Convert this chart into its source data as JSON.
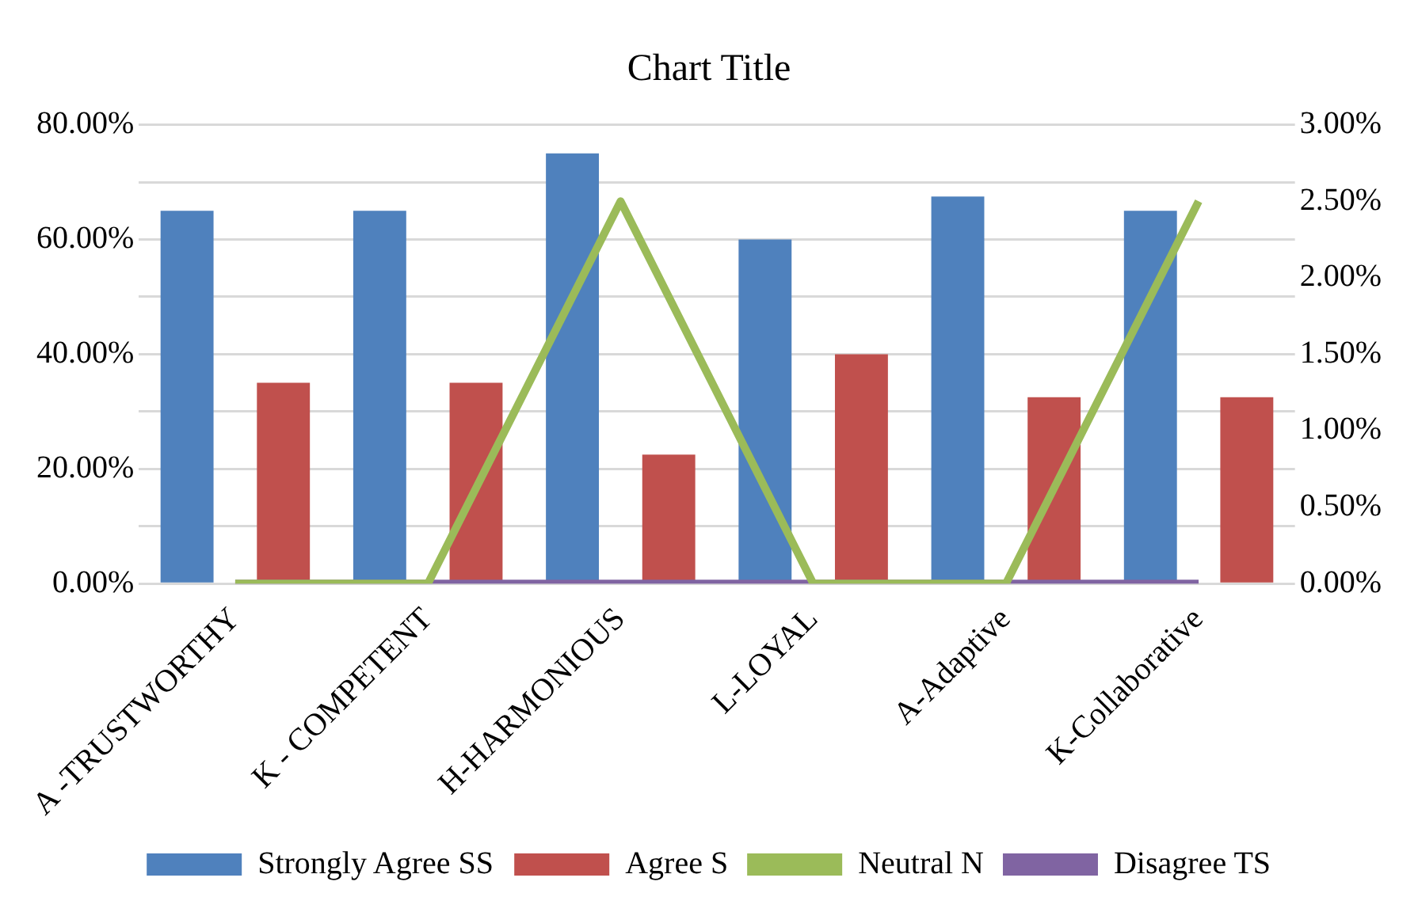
{
  "chart_data": {
    "type": "bar",
    "title": "Chart Title",
    "categories": [
      "A -TRUSTWORTHY",
      "K - COMPETENT",
      "H-HARMONIOUS",
      "L-LOYAL",
      "A-Adaptive",
      "K-Collaborative"
    ],
    "series": [
      {
        "name": "Strongly Agree SS",
        "color": "#4f81bd",
        "values": [
          65,
          65,
          75,
          60,
          67.5,
          65
        ]
      },
      {
        "name": "Agree S",
        "color": "#c0504d",
        "values": [
          35,
          35,
          22.5,
          40,
          32.5,
          32.5
        ]
      },
      {
        "name": "Neutral N",
        "type": "line",
        "axis": "y2",
        "color": "#9bbb59",
        "values": [
          0,
          0,
          2.5,
          0,
          0,
          2.5
        ]
      },
      {
        "name": "Disagree TS",
        "type": "line",
        "axis": "y2",
        "color": "#8064a2",
        "values": [
          0,
          0,
          0,
          0,
          0,
          0
        ]
      }
    ],
    "ylim": [
      0,
      80
    ],
    "yticks": [
      {
        "value": 0,
        "label": "0.00%"
      },
      {
        "value": 10,
        "label": null
      },
      {
        "value": 20,
        "label": "20.00%"
      },
      {
        "value": 30,
        "label": null
      },
      {
        "value": 40,
        "label": "40.00%"
      },
      {
        "value": 50,
        "label": null
      },
      {
        "value": 60,
        "label": "60.00%"
      },
      {
        "value": 70,
        "label": null
      },
      {
        "value": 80,
        "label": "80.00%"
      }
    ],
    "y2lim": [
      0,
      3
    ],
    "y2ticks": [
      {
        "value": 0,
        "label": "0.00%"
      },
      {
        "value": 0.5,
        "label": "0.50%"
      },
      {
        "value": 1,
        "label": "1.00%"
      },
      {
        "value": 1.5,
        "label": "1.50%"
      },
      {
        "value": 2,
        "label": "2.00%"
      },
      {
        "value": 2.5,
        "label": "2.50%"
      },
      {
        "value": 3,
        "label": "3.00%"
      }
    ],
    "grid": "y",
    "legend": "bottom"
  }
}
